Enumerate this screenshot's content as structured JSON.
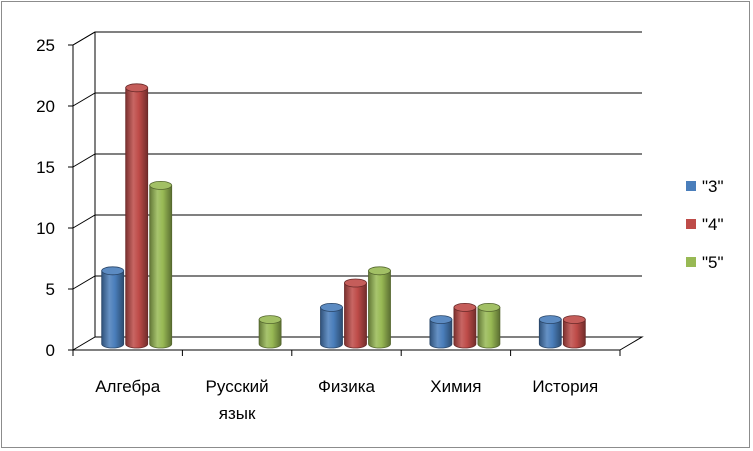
{
  "chart_data": {
    "type": "bar",
    "categories": [
      "Алгебра",
      "Русский язык",
      "Физика",
      "Химия",
      "История"
    ],
    "series": [
      {
        "name": "\"3\"",
        "values": [
          6,
          0,
          3,
          2,
          2
        ],
        "color": "#4a7ebb"
      },
      {
        "name": "\"4\"",
        "values": [
          21,
          0,
          5,
          3,
          2
        ],
        "color": "#be4b48"
      },
      {
        "name": "\"5\"",
        "values": [
          13,
          2,
          6,
          3,
          0
        ],
        "color": "#98b954"
      }
    ],
    "ylim": [
      0,
      25
    ],
    "yticks": [
      0,
      5,
      10,
      15,
      20,
      25
    ],
    "grid": true,
    "legend_position": "right",
    "style": "3d-cylinder"
  }
}
